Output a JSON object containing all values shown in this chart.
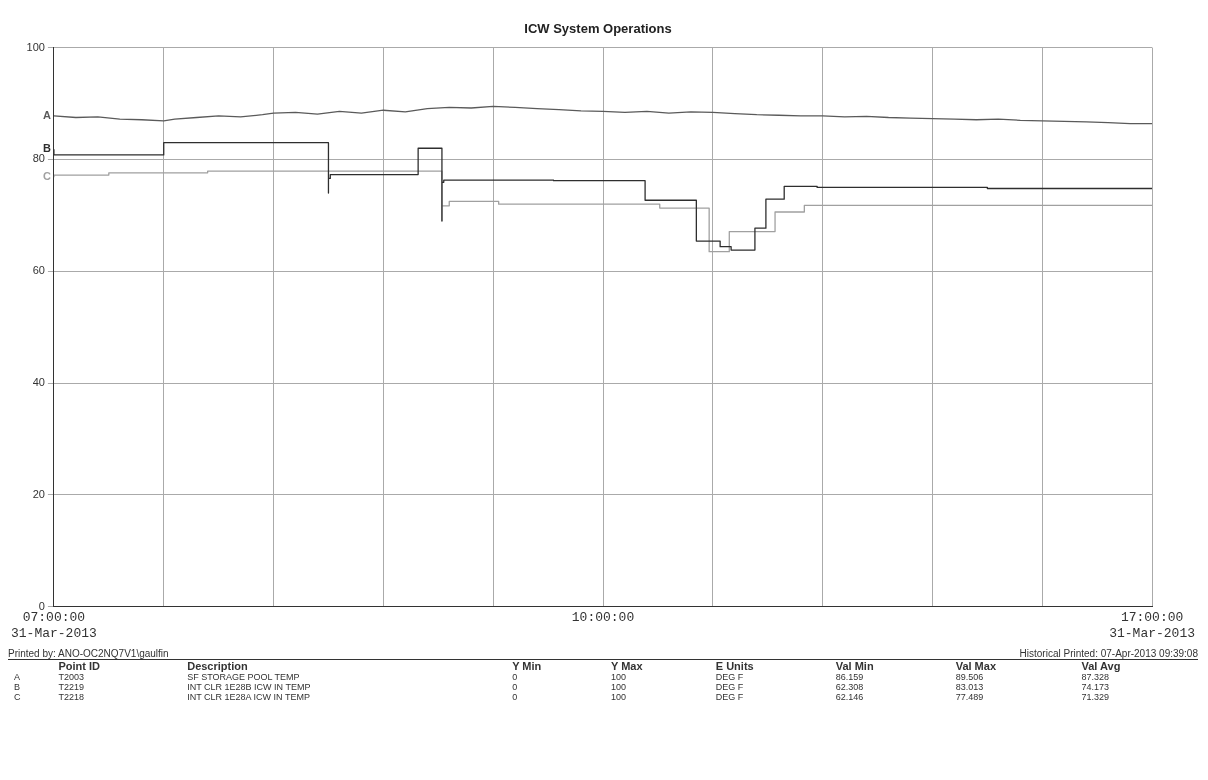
{
  "chart_data": {
    "type": "line",
    "title": "ICW System Operations",
    "xlim": [
      "2013-03-31T07:00",
      "2013-03-31T17:00"
    ],
    "xticks": [
      {
        "value": "2013-03-31T07:00",
        "label": "07:00:00\n31-Mar-2013"
      },
      {
        "value": "2013-03-31T08:00",
        "label": null
      },
      {
        "value": "2013-03-31T09:00",
        "label": null
      },
      {
        "value": "2013-03-31T10:00",
        "label": null
      },
      {
        "value": "2013-03-31T11:00",
        "label": null
      },
      {
        "value": "2013-03-31T12:00",
        "label": "10:00:00"
      },
      {
        "value": "2013-03-31T13:00",
        "label": null
      },
      {
        "value": "2013-03-31T14:00",
        "label": null
      },
      {
        "value": "2013-03-31T15:00",
        "label": null
      },
      {
        "value": "2013-03-31T16:00",
        "label": null
      },
      {
        "value": "2013-03-31T17:00",
        "label": "17:00:00\n31-Mar-2013"
      }
    ],
    "ylim": [
      0,
      100
    ],
    "yticks": [
      0,
      20,
      40,
      60,
      80,
      100
    ],
    "grid": true,
    "legend": false,
    "series": [
      {
        "name": "A",
        "color": "#5a5a5a",
        "x": [
          "2013-03-31T07:00",
          "2013-03-31T07:12",
          "2013-03-31T07:24",
          "2013-03-31T07:36",
          "2013-03-31T07:48",
          "2013-03-31T08:00",
          "2013-03-31T08:06",
          "2013-03-31T08:18",
          "2013-03-31T08:30",
          "2013-03-31T08:42",
          "2013-03-31T08:54",
          "2013-03-31T09:00",
          "2013-03-31T09:12",
          "2013-03-31T09:24",
          "2013-03-31T09:36",
          "2013-03-31T09:48",
          "2013-03-31T10:00",
          "2013-03-31T10:12",
          "2013-03-31T10:24",
          "2013-03-31T10:36",
          "2013-03-31T10:48",
          "2013-03-31T11:00",
          "2013-03-31T11:12",
          "2013-03-31T11:24",
          "2013-03-31T11:36",
          "2013-03-31T11:48",
          "2013-03-31T12:00",
          "2013-03-31T12:12",
          "2013-03-31T12:24",
          "2013-03-31T12:36",
          "2013-03-31T12:48",
          "2013-03-31T13:00",
          "2013-03-31T13:12",
          "2013-03-31T13:24",
          "2013-03-31T13:36",
          "2013-03-31T13:48",
          "2013-03-31T14:00",
          "2013-03-31T14:12",
          "2013-03-31T14:24",
          "2013-03-31T14:36",
          "2013-03-31T14:48",
          "2013-03-31T15:00",
          "2013-03-31T15:12",
          "2013-03-31T15:24",
          "2013-03-31T15:36",
          "2013-03-31T15:48",
          "2013-03-31T16:00",
          "2013-03-31T16:12",
          "2013-03-31T16:24",
          "2013-03-31T16:36",
          "2013-03-31T16:48",
          "2013-03-31T17:00"
        ],
        "values": [
          87.8,
          87.5,
          87.6,
          87.2,
          87.1,
          86.9,
          87.2,
          87.5,
          87.8,
          87.6,
          88,
          88.3,
          88.4,
          88.1,
          88.6,
          88.3,
          88.8,
          88.5,
          89.1,
          89.3,
          89.2,
          89.5,
          89.3,
          89.1,
          88.9,
          88.7,
          88.6,
          88.4,
          88.6,
          88.3,
          88.5,
          88.4,
          88.2,
          88,
          87.9,
          87.8,
          87.8,
          87.6,
          87.7,
          87.5,
          87.4,
          87.3,
          87.2,
          87.1,
          87.2,
          87,
          86.9,
          86.8,
          86.7,
          86.6,
          86.4,
          86.4
        ]
      },
      {
        "name": "B",
        "type": "step",
        "color": "#2e2e2e",
        "x": [
          "2013-03-31T07:00",
          "2013-03-31T08:00",
          "2013-03-31T09:30",
          "2013-03-31T09:30",
          "2013-03-31T09:31",
          "2013-03-31T10:19",
          "2013-03-31T10:32",
          "2013-03-31T10:32",
          "2013-03-31T10:33",
          "2013-03-31T11:33",
          "2013-03-31T12:23",
          "2013-03-31T12:51",
          "2013-03-31T13:04",
          "2013-03-31T13:10",
          "2013-03-31T13:23",
          "2013-03-31T13:29",
          "2013-03-31T13:39",
          "2013-03-31T13:57",
          "2013-03-31T15:30",
          "2013-03-31T17:00"
        ],
        "values": [
          81.8,
          80.8,
          83,
          74,
          76.6,
          77.3,
          82,
          69,
          75.9,
          76.3,
          76.2,
          72.7,
          65.4,
          64.4,
          63.8,
          67.7,
          72.9,
          75.2,
          75,
          74.8
        ]
      },
      {
        "name": "C",
        "type": "step",
        "color": "#a0a0a0",
        "x": [
          "2013-03-31T07:00",
          "2013-03-31T07:30",
          "2013-03-31T08:24",
          "2013-03-31T10:32",
          "2013-03-31T10:32",
          "2013-03-31T10:36",
          "2013-03-31T11:03",
          "2013-03-31T12:31",
          "2013-03-31T12:58",
          "2013-03-31T13:09",
          "2013-03-31T13:34",
          "2013-03-31T13:50",
          "2013-03-31T14:10",
          "2013-03-31T17:00"
        ],
        "values": [
          76.8,
          77.2,
          77.6,
          77.9,
          69,
          71.7,
          72.5,
          72,
          71.3,
          63.5,
          67.1,
          70.6,
          71.8,
          71.8
        ]
      }
    ],
    "annotations": [
      "Printed by: ANO-OC2NQ7V1\\gaulfin",
      "Historical   Printed: 07-Apr-2013 09:39:08",
      "\tPoint ID\tDescription\tY Min\tY Max\tE Units\tVal Min\tVal Max\tVal Avg",
      "A\tT2003\tSF STORAGE POOL TEMP\t0\t100\tDEG F\t86.159\t89.506\t87.328",
      "B\tT2219\tINT CLR 1E28B ICW IN TEMP\t0\t100\tDEG F\t62.308\t83.013\t74.173",
      "C\tT2218\tINT CLR 1E28A ICW IN TEMP\t0\t100\tDEG F\t62.146\t77.489\t71.329"
    ]
  }
}
